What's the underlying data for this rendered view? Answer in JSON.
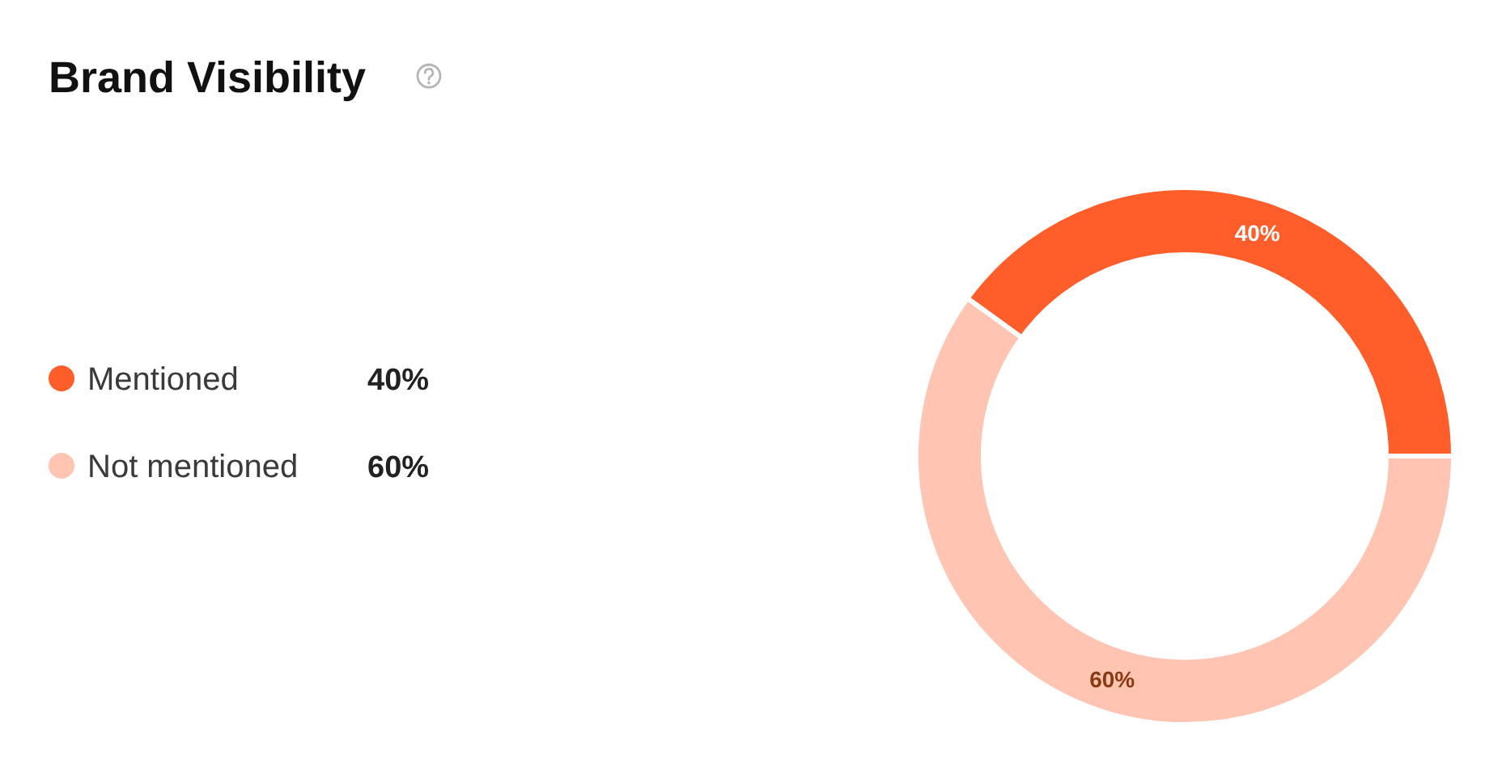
{
  "chart_data": {
    "type": "donut",
    "title": "Brand Visibility",
    "categories": [
      "Mentioned",
      "Not mentioned"
    ],
    "values": [
      40,
      60
    ],
    "colors": [
      "#ff5e2b",
      "#ffc4b2"
    ],
    "value_labels": [
      "40%",
      "60%"
    ],
    "legend": "left"
  }
}
